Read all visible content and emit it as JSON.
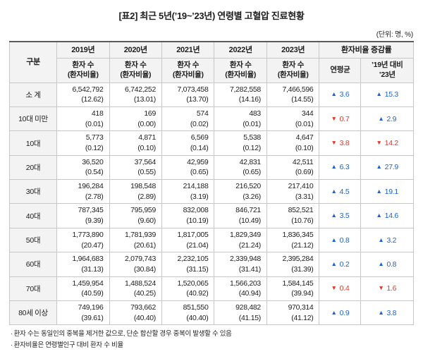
{
  "title": "[표2] 최근 5년(’19~’23년) 연령별 고혈압 진료현황",
  "unit_note": "(단위: 명, %)",
  "colors": {
    "up": "#2062c8",
    "down": "#e8362a"
  },
  "icons": {
    "up_glyph": "▲",
    "down_glyph": "▼"
  },
  "table": {
    "col_group_label": "구분",
    "year_headers": [
      "2019년",
      "2020년",
      "2021년",
      "2022년",
      "2023년"
    ],
    "sub_header": {
      "line1": "환자 수",
      "line2": "(환자비율)"
    },
    "change_group_label": "환자비율 증감률",
    "annual_header": "연평균",
    "vs_header": {
      "line1": "’19년 대비",
      "line2": "’23년"
    },
    "rows": [
      {
        "label": "소 계",
        "cells": [
          {
            "count": "6,542,792",
            "ratio": "(12.62)"
          },
          {
            "count": "6,742,252",
            "ratio": "(13.01)"
          },
          {
            "count": "7,073,458",
            "ratio": "(13.70)"
          },
          {
            "count": "7,282,558",
            "ratio": "(14.16)"
          },
          {
            "count": "7,466,596",
            "ratio": "(14.55)"
          }
        ],
        "annual": {
          "dir": "up",
          "value": "3.6"
        },
        "vs": {
          "dir": "up",
          "value": "15.3"
        }
      },
      {
        "label": "10대 미만",
        "cells": [
          {
            "count": "418",
            "ratio": "(0.01)"
          },
          {
            "count": "169",
            "ratio": "(0.00)"
          },
          {
            "count": "574",
            "ratio": "(0.02)"
          },
          {
            "count": "483",
            "ratio": "(0.01)"
          },
          {
            "count": "344",
            "ratio": "(0.01)"
          }
        ],
        "annual": {
          "dir": "down",
          "value": "0.7"
        },
        "vs": {
          "dir": "up",
          "value": "2.9"
        }
      },
      {
        "label": "10대",
        "cells": [
          {
            "count": "5,773",
            "ratio": "(0.12)"
          },
          {
            "count": "4,871",
            "ratio": "(0.10)"
          },
          {
            "count": "6,569",
            "ratio": "(0.14)"
          },
          {
            "count": "5,538",
            "ratio": "(0.12)"
          },
          {
            "count": "4,647",
            "ratio": "(0.10)"
          }
        ],
        "annual": {
          "dir": "down",
          "value": "3.8"
        },
        "vs": {
          "dir": "down",
          "value": "14.2"
        }
      },
      {
        "label": "20대",
        "cells": [
          {
            "count": "36,520",
            "ratio": "(0.54)"
          },
          {
            "count": "37,564",
            "ratio": "(0.55)"
          },
          {
            "count": "42,959",
            "ratio": "(0.65)"
          },
          {
            "count": "42,831",
            "ratio": "(0.65)"
          },
          {
            "count": "42,511",
            "ratio": "(0.69)"
          }
        ],
        "annual": {
          "dir": "up",
          "value": "6.3"
        },
        "vs": {
          "dir": "up",
          "value": "27.9"
        }
      },
      {
        "label": "30대",
        "cells": [
          {
            "count": "196,284",
            "ratio": "(2.78)"
          },
          {
            "count": "198,548",
            "ratio": "(2.89)"
          },
          {
            "count": "214,188",
            "ratio": "(3.19)"
          },
          {
            "count": "216,520",
            "ratio": "(3.26)"
          },
          {
            "count": "217,410",
            "ratio": "(3.31)"
          }
        ],
        "annual": {
          "dir": "up",
          "value": "4.5"
        },
        "vs": {
          "dir": "up",
          "value": "19.1"
        }
      },
      {
        "label": "40대",
        "cells": [
          {
            "count": "787,345",
            "ratio": "(9.39)"
          },
          {
            "count": "795,959",
            "ratio": "(9.60)"
          },
          {
            "count": "832,008",
            "ratio": "(10.19)"
          },
          {
            "count": "846,721",
            "ratio": "(10.49)"
          },
          {
            "count": "852,521",
            "ratio": "(10.76)"
          }
        ],
        "annual": {
          "dir": "up",
          "value": "3.5"
        },
        "vs": {
          "dir": "up",
          "value": "14.6"
        }
      },
      {
        "label": "50대",
        "cells": [
          {
            "count": "1,773,890",
            "ratio": "(20.47)"
          },
          {
            "count": "1,781,939",
            "ratio": "(20.61)"
          },
          {
            "count": "1,817,005",
            "ratio": "(21.04)"
          },
          {
            "count": "1,829,349",
            "ratio": "(21.24)"
          },
          {
            "count": "1,836,345",
            "ratio": "(21.12)"
          }
        ],
        "annual": {
          "dir": "up",
          "value": "0.8"
        },
        "vs": {
          "dir": "up",
          "value": "3.2"
        }
      },
      {
        "label": "60대",
        "cells": [
          {
            "count": "1,964,683",
            "ratio": "(31.13)"
          },
          {
            "count": "2,079,743",
            "ratio": "(30.84)"
          },
          {
            "count": "2,232,105",
            "ratio": "(31.15)"
          },
          {
            "count": "2,339,948",
            "ratio": "(31.41)"
          },
          {
            "count": "2,395,284",
            "ratio": "(31.39)"
          }
        ],
        "annual": {
          "dir": "up",
          "value": "0.2"
        },
        "vs": {
          "dir": "up",
          "value": "0.8"
        }
      },
      {
        "label": "70대",
        "cells": [
          {
            "count": "1,459,954",
            "ratio": "(40.59)"
          },
          {
            "count": "1,488,524",
            "ratio": "(40.25)"
          },
          {
            "count": "1,520,065",
            "ratio": "(40.92)"
          },
          {
            "count": "1,566,203",
            "ratio": "(40.94)"
          },
          {
            "count": "1,584,145",
            "ratio": "(39.94)"
          }
        ],
        "annual": {
          "dir": "down",
          "value": "0.4"
        },
        "vs": {
          "dir": "down",
          "value": "1.6"
        }
      },
      {
        "label": "80세 이상",
        "cells": [
          {
            "count": "749,196",
            "ratio": "(39.61)"
          },
          {
            "count": "793,662",
            "ratio": "(40.40)"
          },
          {
            "count": "851,550",
            "ratio": "(40.40)"
          },
          {
            "count": "928,482",
            "ratio": "(41.15)"
          },
          {
            "count": "970,314",
            "ratio": "(41.12)"
          }
        ],
        "annual": {
          "dir": "up",
          "value": "0.9"
        },
        "vs": {
          "dir": "up",
          "value": "3.8"
        }
      }
    ]
  },
  "footnotes": [
    "∙ 환자 수는 동일인의 중복을 제거한 값으로, 단순 합산할 경우 중복이 발생할 수 있음",
    "∙ 환자비율은 연령별인구 대비 환자 수 비율"
  ]
}
